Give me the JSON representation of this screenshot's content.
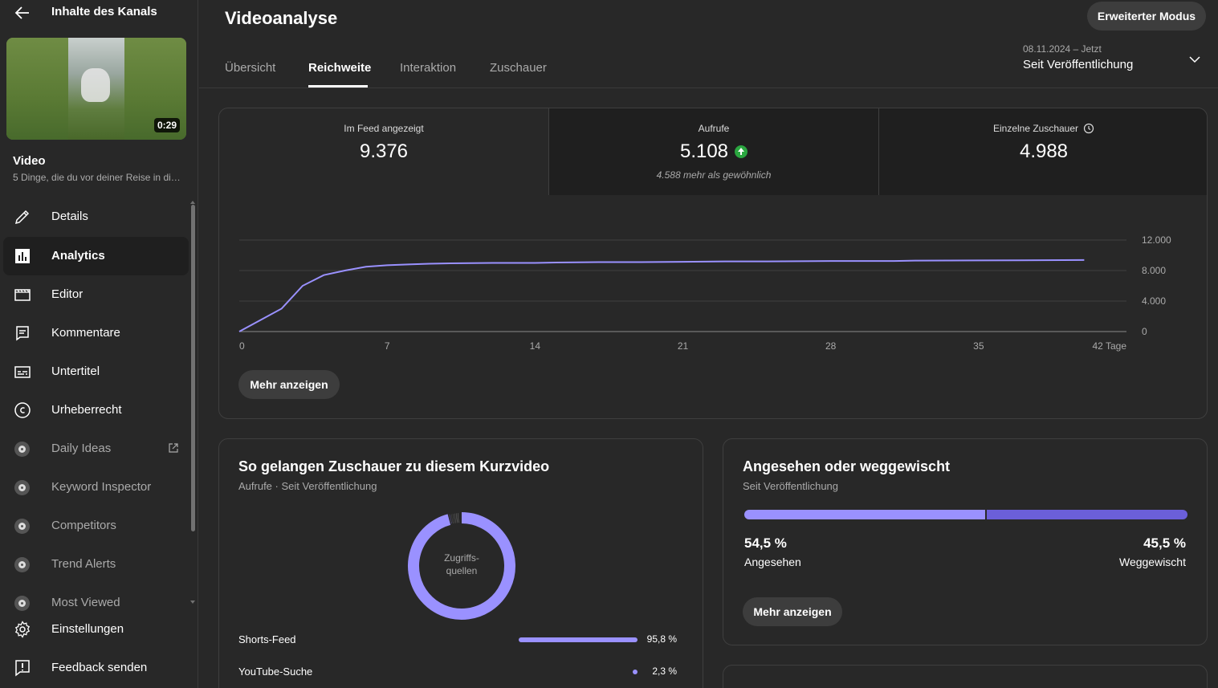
{
  "sidebar": {
    "back_title": "Inhalte des Kanals",
    "video_duration": "0:29",
    "video_label": "Video",
    "video_title": "5 Dinge, die du vor deiner Reise in di…",
    "items": [
      {
        "label": "Details",
        "icon": "pencil-icon"
      },
      {
        "label": "Analytics",
        "icon": "analytics-icon",
        "active": true
      },
      {
        "label": "Editor",
        "icon": "editor-icon"
      },
      {
        "label": "Kommentare",
        "icon": "comments-icon"
      },
      {
        "label": "Untertitel",
        "icon": "subtitles-icon"
      },
      {
        "label": "Urheberrecht",
        "icon": "copyright-icon"
      }
    ],
    "ext_items": [
      {
        "label": "Daily Ideas",
        "icon": "extension-icon"
      },
      {
        "label": "Keyword Inspector",
        "icon": "extension-icon"
      },
      {
        "label": "Competitors",
        "icon": "extension-icon"
      },
      {
        "label": "Trend Alerts",
        "icon": "extension-icon"
      },
      {
        "label": "Most Viewed",
        "icon": "extension-icon"
      }
    ],
    "bottom_items": [
      {
        "label": "Einstellungen",
        "icon": "gear-icon"
      },
      {
        "label": "Feedback senden",
        "icon": "feedback-icon"
      }
    ]
  },
  "header": {
    "title": "Videoanalyse",
    "advanced_mode": "Erweiterter Modus",
    "tabs": [
      "Übersicht",
      "Reichweite",
      "Interaktion",
      "Zuschauer"
    ],
    "active_tab": "Reichweite",
    "date_range_dates": "08.11.2024 – Jetzt",
    "date_range_label": "Seit Veröffentlichung"
  },
  "metrics": [
    {
      "label": "Im Feed angezeigt",
      "value": "9.376"
    },
    {
      "label": "Aufrufe",
      "value": "5.108",
      "note": "4.588 mehr als gewöhnlich"
    },
    {
      "label": "Einzelne Zuschauer",
      "value": "4.988"
    }
  ],
  "chart_data": {
    "type": "line",
    "x_ticks": [
      "0",
      "7",
      "14",
      "21",
      "28",
      "35",
      "42 Tage"
    ],
    "y_ticks": [
      "12.000",
      "8.000",
      "4.000",
      "0"
    ],
    "ylim": [
      0,
      12000
    ],
    "xlim": [
      0,
      42
    ],
    "series": [
      {
        "x": [
          0,
          1,
          2,
          3,
          4,
          5,
          6,
          7,
          8,
          9,
          10,
          12,
          14,
          15,
          17,
          19,
          21,
          23,
          25,
          28,
          31,
          32,
          35,
          38,
          40
        ],
        "y": [
          0,
          1500,
          3000,
          6000,
          7400,
          8000,
          8500,
          8700,
          8800,
          8900,
          8950,
          9000,
          9000,
          9050,
          9100,
          9100,
          9150,
          9200,
          9200,
          9250,
          9250,
          9300,
          9330,
          9350,
          9376
        ]
      }
    ],
    "line_color": "#9a91ff",
    "grid": true
  },
  "more_label": "Mehr anzeigen",
  "traffic": {
    "title": "So gelangen Zuschauer zu diesem Kurzvideo",
    "subtitle": "Aufrufe · Seit Veröffentlichung",
    "donut_label": "Zugriffs-\nquellen",
    "sources": [
      {
        "name": "Shorts-Feed",
        "value": 95.8,
        "pct": "95,8 %"
      },
      {
        "name": "YouTube-Suche",
        "value": 2.3,
        "pct": "2,3 %"
      }
    ]
  },
  "swipe": {
    "title": "Angesehen oder weggewischt",
    "subtitle": "Seit Veröffentlichung",
    "watched_pct": "54,5 %",
    "watched_label": "Angesehen",
    "watched_value": 54.5,
    "swiped_pct": "45,5 %",
    "swiped_label": "Weggewischt",
    "swiped_value": 45.5,
    "colors": {
      "watched": "#9a91ff",
      "swiped": "#6b5fd9"
    }
  }
}
